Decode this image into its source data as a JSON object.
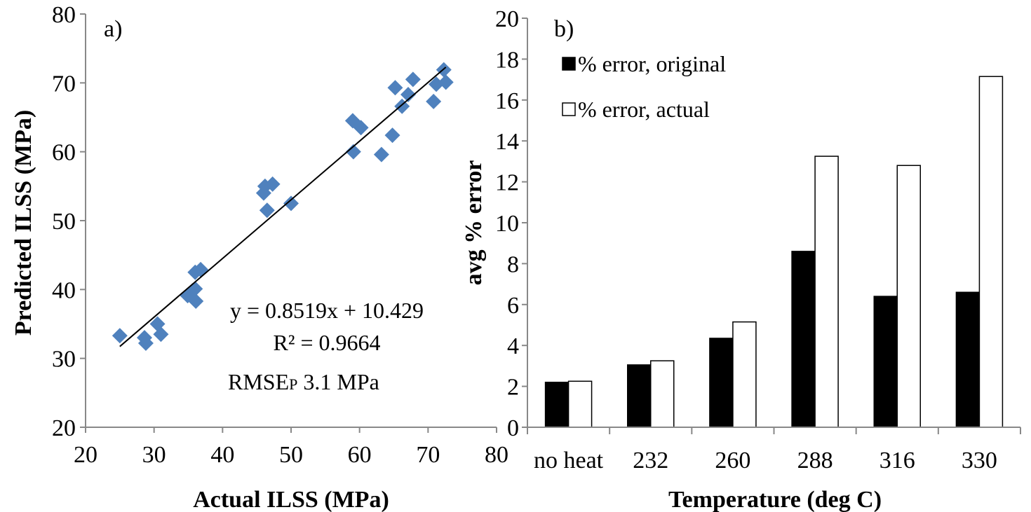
{
  "chart_data": [
    {
      "type": "scatter",
      "panel_label": "a)",
      "xlabel": "Actual ILSS (MPa)",
      "ylabel": "Predicted ILSS (MPa)",
      "xlim": [
        20,
        80
      ],
      "ylim": [
        20,
        80
      ],
      "x_ticks": [
        "20",
        "30",
        "40",
        "50",
        "60",
        "70",
        "80"
      ],
      "y_ticks": [
        "20",
        "30",
        "40",
        "50",
        "60",
        "70",
        "80"
      ],
      "grid": false,
      "marker_color": "#4F81BD",
      "points": [
        [
          25.0,
          33.3
        ],
        [
          28.6,
          33.0
        ],
        [
          28.8,
          32.2
        ],
        [
          30.5,
          35.0
        ],
        [
          31.0,
          33.5
        ],
        [
          34.9,
          39.1
        ],
        [
          35.6,
          39.8
        ],
        [
          36.0,
          40.1
        ],
        [
          36.1,
          38.3
        ],
        [
          36.0,
          42.5
        ],
        [
          36.8,
          42.9
        ],
        [
          46.0,
          54.0
        ],
        [
          46.2,
          55.0
        ],
        [
          46.5,
          51.5
        ],
        [
          47.3,
          55.3
        ],
        [
          50.0,
          52.5
        ],
        [
          59.0,
          64.5
        ],
        [
          59.1,
          60.0
        ],
        [
          60.2,
          63.5
        ],
        [
          63.2,
          59.6
        ],
        [
          64.8,
          62.4
        ],
        [
          65.2,
          69.3
        ],
        [
          66.2,
          66.6
        ],
        [
          67.1,
          68.3
        ],
        [
          67.8,
          70.5
        ],
        [
          70.8,
          67.3
        ],
        [
          71.2,
          69.8
        ],
        [
          72.3,
          71.9
        ],
        [
          72.6,
          70.1
        ]
      ],
      "trendline": {
        "slope": 0.8519,
        "intercept": 10.429,
        "x_range": [
          25,
          72.6
        ]
      },
      "annotations": {
        "equation": "y = 0.8519x + 10.429",
        "r2": "R² = 0.9664",
        "rmse_main": "RMSE",
        "rmse_sub": "P",
        "rmse_value": " 3.1 MPa"
      }
    },
    {
      "type": "bar",
      "panel_label": "b)",
      "xlabel": "Temperature (deg C)",
      "ylabel": "avg % error",
      "ylim": [
        0,
        20
      ],
      "y_ticks": [
        "0",
        "2",
        "4",
        "6",
        "8",
        "10",
        "12",
        "14",
        "16",
        "18",
        "20"
      ],
      "grid": false,
      "legend_position": "top-left",
      "categories": [
        "no heat",
        "232",
        "260",
        "288",
        "316",
        "330"
      ],
      "series": [
        {
          "name": "% error, original",
          "color": "#000000",
          "values": [
            2.2,
            3.05,
            4.35,
            8.6,
            6.4,
            6.6
          ]
        },
        {
          "name": "% error, actual",
          "color": "#ffffff",
          "values": [
            2.25,
            3.25,
            5.15,
            13.25,
            12.8,
            17.15
          ]
        }
      ]
    }
  ]
}
